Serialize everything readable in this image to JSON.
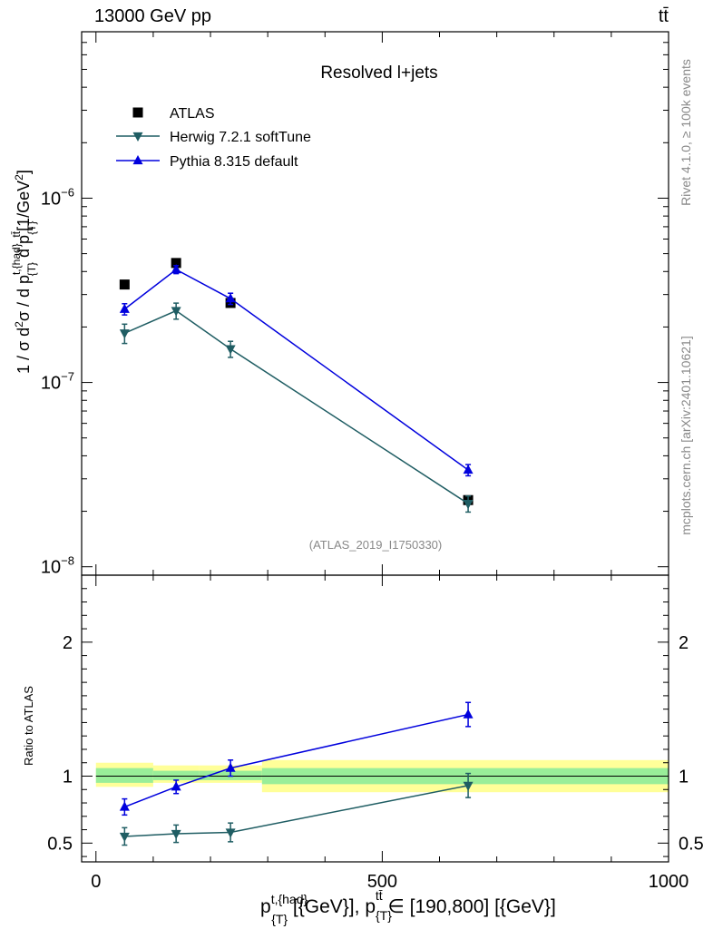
{
  "header": {
    "left_label": "13000 GeV pp",
    "right_label": "tt̄"
  },
  "side_labels": {
    "rivet": "Rivet 4.1.0, ≥ 100k events",
    "mcplots": "mcplots.cern.ch [arXiv:2401.10621]"
  },
  "chart_data": [
    {
      "type": "line",
      "panel": "main",
      "title": "Resolved l+jets",
      "annotation": "(ATLAS_2019_I1750330)",
      "ylabel": "1 / σ d²σ / d p^{t,{had}}_{T} d p_{T}^{tt̄} [1/GeV²]",
      "yscale": "log",
      "ylim": [
        9e-09,
        8e-06
      ],
      "xlim": [
        -25,
        1000
      ],
      "ytick_labels": [
        "10^{-8}",
        "10^{-7}",
        "10^{-6}"
      ],
      "legend_position": "top-left",
      "series": [
        {
          "name": "ATLAS",
          "color": "#000000",
          "marker": "square",
          "x": [
            50,
            140,
            235,
            650
          ],
          "y": [
            3.4e-07,
            4.45e-07,
            2.7e-07,
            2.3e-08
          ]
        },
        {
          "name": "Herwig 7.2.1 softTune",
          "color": "#1f5d63",
          "marker": "triangle-down",
          "x": [
            50,
            140,
            235,
            650
          ],
          "y": [
            1.85e-07,
            2.45e-07,
            1.52e-07,
            2.2e-08
          ],
          "err": [
            0.12,
            0.1,
            0.1,
            0.1
          ]
        },
        {
          "name": "Pythia 8.315 default",
          "color": "#0000dd",
          "marker": "triangle-up",
          "x": [
            50,
            140,
            235,
            650
          ],
          "y": [
            2.5e-07,
            4.1e-07,
            2.85e-07,
            3.35e-08
          ],
          "err": [
            0.07,
            0.05,
            0.07,
            0.07
          ]
        }
      ]
    },
    {
      "type": "line",
      "panel": "ratio",
      "ylabel": "Ratio to ATLAS",
      "xlabel": "p^{t,{had}}_{T} [{GeV}], p_{T}^{tt̄} ∈ [190,800] [{GeV}]",
      "ylim": [
        0.36,
        2.5
      ],
      "xlim": [
        -25,
        1000
      ],
      "xtick_labels": [
        "0",
        "500",
        "1000"
      ],
      "ytick_labels": [
        "0.5",
        "1",
        "2"
      ],
      "bands": {
        "edges": [
          0,
          100,
          180,
          290,
          1000
        ],
        "green": [
          [
            0.95,
            1.06
          ],
          [
            0.97,
            1.04
          ],
          [
            0.97,
            1.04
          ],
          [
            0.94,
            1.06
          ]
        ],
        "yellow": [
          [
            0.92,
            1.1
          ],
          [
            0.95,
            1.08
          ],
          [
            0.95,
            1.08
          ],
          [
            0.88,
            1.12
          ]
        ]
      },
      "series": [
        {
          "name": "Herwig 7.2.1 softTune",
          "color": "#1f5d63",
          "marker": "triangle-down",
          "x": [
            50,
            140,
            235,
            650
          ],
          "y": [
            0.55,
            0.57,
            0.58,
            0.93
          ],
          "err": [
            0.065,
            0.065,
            0.07,
            0.09
          ]
        },
        {
          "name": "Pythia 8.315 default",
          "color": "#0000dd",
          "marker": "triangle-up",
          "x": [
            50,
            140,
            235,
            650
          ],
          "y": [
            0.77,
            0.92,
            1.06,
            1.46
          ],
          "err": [
            0.06,
            0.05,
            0.06,
            0.09
          ]
        }
      ]
    }
  ]
}
